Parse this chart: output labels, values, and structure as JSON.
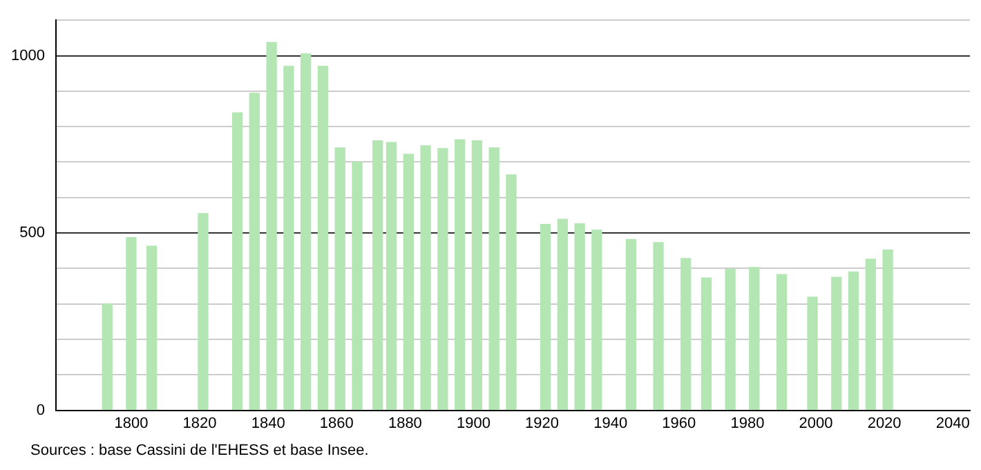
{
  "chart_data": {
    "type": "bar",
    "x": [
      1793,
      1800,
      1806,
      1821,
      1831,
      1836,
      1841,
      1846,
      1851,
      1856,
      1861,
      1866,
      1872,
      1876,
      1881,
      1886,
      1891,
      1896,
      1901,
      1906,
      1911,
      1921,
      1926,
      1931,
      1936,
      1946,
      1954,
      1962,
      1968,
      1975,
      1982,
      1990,
      1999,
      2006,
      2011,
      2016,
      2021
    ],
    "values": [
      300,
      487,
      463,
      555,
      839,
      894,
      1037,
      970,
      1005,
      970,
      740,
      700,
      760,
      755,
      722,
      746,
      738,
      763,
      760,
      740,
      664,
      524,
      539,
      526,
      508,
      482,
      473,
      428,
      373,
      398,
      403,
      383,
      319,
      375,
      390,
      426,
      452
    ],
    "color": "#b3e6b3",
    "xlim": [
      1778,
      2045
    ],
    "xticks": [
      1800,
      1820,
      1840,
      1860,
      1880,
      1900,
      1920,
      1940,
      1960,
      1980,
      2000,
      2020,
      2040
    ],
    "ylim": [
      0,
      1100
    ],
    "yticks": [
      0,
      {
        "value": 100,
        "label": null
      },
      {
        "value": 200,
        "label": null
      },
      {
        "value": 300,
        "label": null
      },
      {
        "value": 400,
        "label": null
      },
      500,
      {
        "value": 600,
        "label": null
      },
      {
        "value": 700,
        "label": null
      },
      {
        "value": 800,
        "label": null
      },
      {
        "value": 900,
        "label": null
      },
      1000,
      {
        "value": 1100,
        "label": null
      }
    ],
    "grid": "y",
    "annotations": [
      "Sources : base Cassini de l'EHESS et base Insee."
    ]
  }
}
